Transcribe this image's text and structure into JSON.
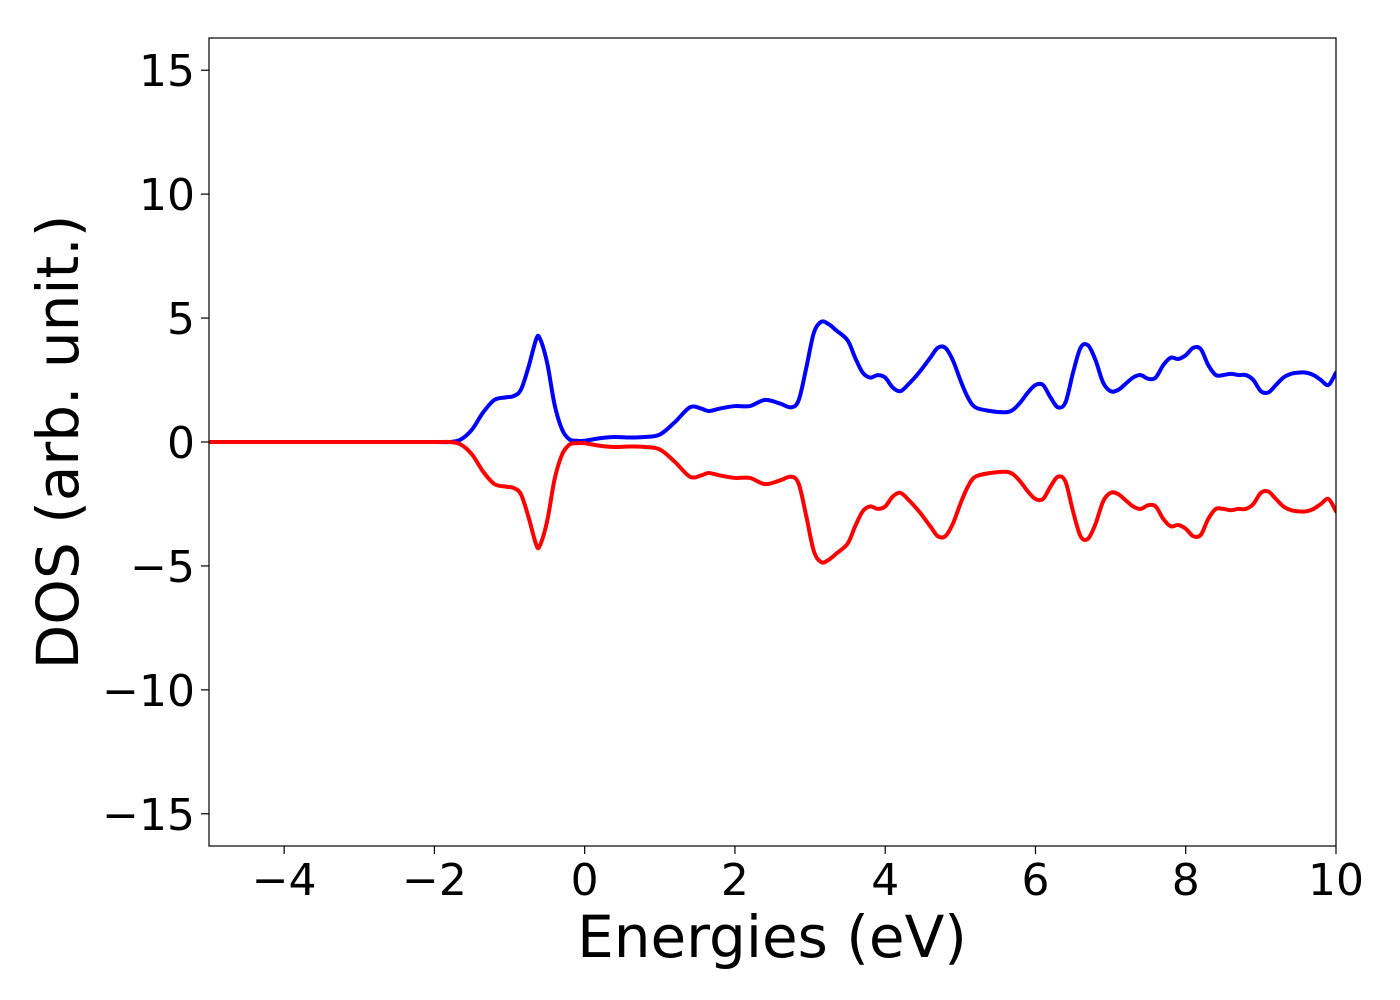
{
  "chart_data": {
    "type": "line",
    "title": "",
    "xlabel": "Energies (eV)",
    "ylabel": "DOS (arb. unit.)",
    "xlim": [
      -5,
      10
    ],
    "ylim": [
      -16.3,
      16.3
    ],
    "x_ticks": [
      -4,
      -2,
      0,
      2,
      4,
      6,
      8,
      10
    ],
    "x_tick_labels": [
      "−4",
      "−2",
      "0",
      "2",
      "4",
      "6",
      "8",
      "10"
    ],
    "y_ticks": [
      15,
      10,
      5,
      0,
      -5,
      -10,
      -15
    ],
    "y_tick_labels": [
      "15",
      "10",
      "5",
      "0",
      "−5",
      "−10",
      "−15"
    ],
    "grid": false,
    "legend": "none",
    "series": [
      {
        "color": "#0000ff",
        "x": [
          -5,
          -4,
          -3,
          -2,
          -1.8,
          -1.65,
          -1.5,
          -1.35,
          -1.2,
          -1.05,
          -0.95,
          -0.85,
          -0.75,
          -0.65,
          -0.6,
          -0.5,
          -0.4,
          -0.3,
          -0.2,
          -0.1,
          0,
          0.2,
          0.4,
          0.6,
          0.8,
          1.0,
          1.2,
          1.4,
          1.55,
          1.65,
          1.8,
          2.0,
          2.2,
          2.4,
          2.6,
          2.75,
          2.85,
          2.95,
          3.05,
          3.15,
          3.25,
          3.35,
          3.5,
          3.6,
          3.7,
          3.8,
          3.9,
          4.0,
          4.1,
          4.2,
          4.3,
          4.45,
          4.6,
          4.7,
          4.8,
          4.9,
          5.0,
          5.1,
          5.2,
          5.4,
          5.6,
          5.7,
          5.8,
          5.9,
          6.0,
          6.1,
          6.2,
          6.3,
          6.4,
          6.5,
          6.6,
          6.7,
          6.8,
          6.9,
          7.0,
          7.1,
          7.2,
          7.3,
          7.4,
          7.5,
          7.6,
          7.7,
          7.8,
          7.9,
          8.0,
          8.1,
          8.2,
          8.3,
          8.4,
          8.5,
          8.6,
          8.7,
          8.8,
          8.9,
          9.0,
          9.1,
          9.2,
          9.3,
          9.4,
          9.5,
          9.6,
          9.7,
          9.8,
          9.9,
          10
        ],
        "y": [
          0,
          0,
          0,
          0,
          0,
          0.1,
          0.5,
          1.2,
          1.7,
          1.8,
          1.85,
          2.1,
          3.0,
          4.1,
          4.2,
          3.2,
          1.5,
          0.5,
          0.1,
          0.05,
          0.05,
          0.15,
          0.2,
          0.18,
          0.2,
          0.3,
          0.8,
          1.4,
          1.35,
          1.25,
          1.35,
          1.45,
          1.45,
          1.7,
          1.55,
          1.4,
          1.7,
          3.0,
          4.4,
          4.85,
          4.75,
          4.5,
          4.1,
          3.4,
          2.8,
          2.6,
          2.7,
          2.6,
          2.2,
          2.05,
          2.3,
          2.8,
          3.4,
          3.8,
          3.8,
          3.3,
          2.5,
          1.8,
          1.4,
          1.25,
          1.2,
          1.3,
          1.6,
          2.0,
          2.3,
          2.3,
          1.8,
          1.4,
          1.6,
          2.8,
          3.8,
          3.9,
          3.3,
          2.4,
          2.05,
          2.1,
          2.35,
          2.6,
          2.7,
          2.55,
          2.6,
          3.1,
          3.4,
          3.35,
          3.5,
          3.8,
          3.75,
          3.1,
          2.7,
          2.7,
          2.75,
          2.7,
          2.7,
          2.5,
          2.05,
          2.0,
          2.3,
          2.6,
          2.75,
          2.8,
          2.8,
          2.7,
          2.5,
          2.3,
          2.8
        ]
      },
      {
        "color": "#ff0000",
        "x": [
          -5,
          -4,
          -3,
          -2,
          -1.8,
          -1.65,
          -1.5,
          -1.35,
          -1.2,
          -1.05,
          -0.95,
          -0.85,
          -0.75,
          -0.65,
          -0.6,
          -0.5,
          -0.4,
          -0.3,
          -0.2,
          -0.1,
          0,
          0.2,
          0.4,
          0.6,
          0.8,
          1.0,
          1.2,
          1.4,
          1.55,
          1.65,
          1.8,
          2.0,
          2.2,
          2.4,
          2.6,
          2.75,
          2.85,
          2.95,
          3.05,
          3.15,
          3.25,
          3.35,
          3.5,
          3.6,
          3.7,
          3.8,
          3.9,
          4.0,
          4.1,
          4.2,
          4.3,
          4.45,
          4.6,
          4.7,
          4.8,
          4.9,
          5.0,
          5.1,
          5.2,
          5.4,
          5.6,
          5.7,
          5.8,
          5.9,
          6.0,
          6.1,
          6.2,
          6.3,
          6.4,
          6.5,
          6.6,
          6.7,
          6.8,
          6.9,
          7.0,
          7.1,
          7.2,
          7.3,
          7.4,
          7.5,
          7.6,
          7.7,
          7.8,
          7.9,
          8.0,
          8.1,
          8.2,
          8.3,
          8.4,
          8.5,
          8.6,
          8.7,
          8.8,
          8.9,
          9.0,
          9.1,
          9.2,
          9.3,
          9.4,
          9.5,
          9.6,
          9.7,
          9.8,
          9.9,
          10
        ],
        "y": [
          0,
          0,
          0,
          0,
          0,
          -0.1,
          -0.5,
          -1.2,
          -1.7,
          -1.8,
          -1.85,
          -2.1,
          -3.0,
          -4.1,
          -4.2,
          -3.2,
          -1.5,
          -0.5,
          -0.1,
          -0.05,
          -0.05,
          -0.15,
          -0.2,
          -0.18,
          -0.2,
          -0.3,
          -0.8,
          -1.4,
          -1.35,
          -1.25,
          -1.35,
          -1.45,
          -1.45,
          -1.7,
          -1.55,
          -1.4,
          -1.7,
          -3.0,
          -4.4,
          -4.85,
          -4.75,
          -4.5,
          -4.1,
          -3.4,
          -2.8,
          -2.6,
          -2.7,
          -2.6,
          -2.2,
          -2.05,
          -2.3,
          -2.8,
          -3.4,
          -3.8,
          -3.8,
          -3.3,
          -2.5,
          -1.8,
          -1.4,
          -1.25,
          -1.2,
          -1.3,
          -1.6,
          -2.0,
          -2.3,
          -2.3,
          -1.8,
          -1.4,
          -1.6,
          -2.8,
          -3.8,
          -3.9,
          -3.3,
          -2.4,
          -2.05,
          -2.1,
          -2.35,
          -2.6,
          -2.7,
          -2.55,
          -2.6,
          -3.1,
          -3.4,
          -3.35,
          -3.5,
          -3.8,
          -3.75,
          -3.1,
          -2.7,
          -2.7,
          -2.75,
          -2.7,
          -2.7,
          -2.5,
          -2.05,
          -2.0,
          -2.3,
          -2.6,
          -2.75,
          -2.8,
          -2.8,
          -2.7,
          -2.5,
          -2.3,
          -2.8
        ]
      }
    ]
  }
}
